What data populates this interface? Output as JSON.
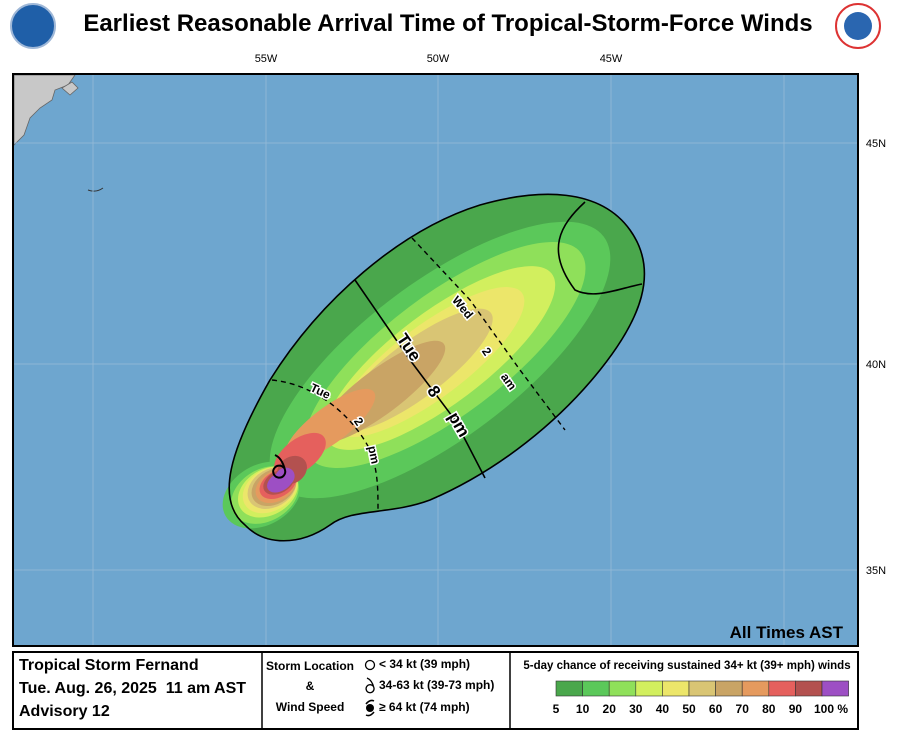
{
  "header": {
    "title": "Earliest Reasonable Arrival Time of Tropical-Storm-Force Winds"
  },
  "map": {
    "lon_labels": [
      "55W",
      "50W",
      "45W"
    ],
    "lat_labels": [
      "45N",
      "40N",
      "35N"
    ],
    "note": "All Times AST",
    "time_labels": [
      [
        "Tue",
        "8",
        "pm"
      ],
      [
        "Wed",
        "2",
        "am"
      ],
      [
        "Tue",
        "2",
        "pm"
      ]
    ]
  },
  "legend": {
    "storm": {
      "name": "Tropical Storm Fernand",
      "date": "Tue. Aug. 26, 2025  11 am AST",
      "advisory": "Advisory 12"
    },
    "symbols": {
      "title": [
        "Storm Location",
        "&",
        "Wind Speed"
      ],
      "items": [
        "< 34 kt (39 mph)",
        "34-63 kt (39-73 mph)",
        "≥ 64 kt (74 mph)"
      ]
    },
    "probability": {
      "title": "5-day chance of receiving sustained 34+ kt (39+ mph) winds",
      "scale": [
        "5",
        "10",
        "20",
        "30",
        "40",
        "50",
        "60",
        "70",
        "80",
        "90",
        "100 %"
      ],
      "colors": [
        "#4aa74c",
        "#5bc85a",
        "#8fe05a",
        "#d2ef5e",
        "#ece66a",
        "#d9c574",
        "#c9a465",
        "#e59a5e",
        "#e5605d",
        "#b3514f",
        "#9d4fc4"
      ]
    }
  }
}
